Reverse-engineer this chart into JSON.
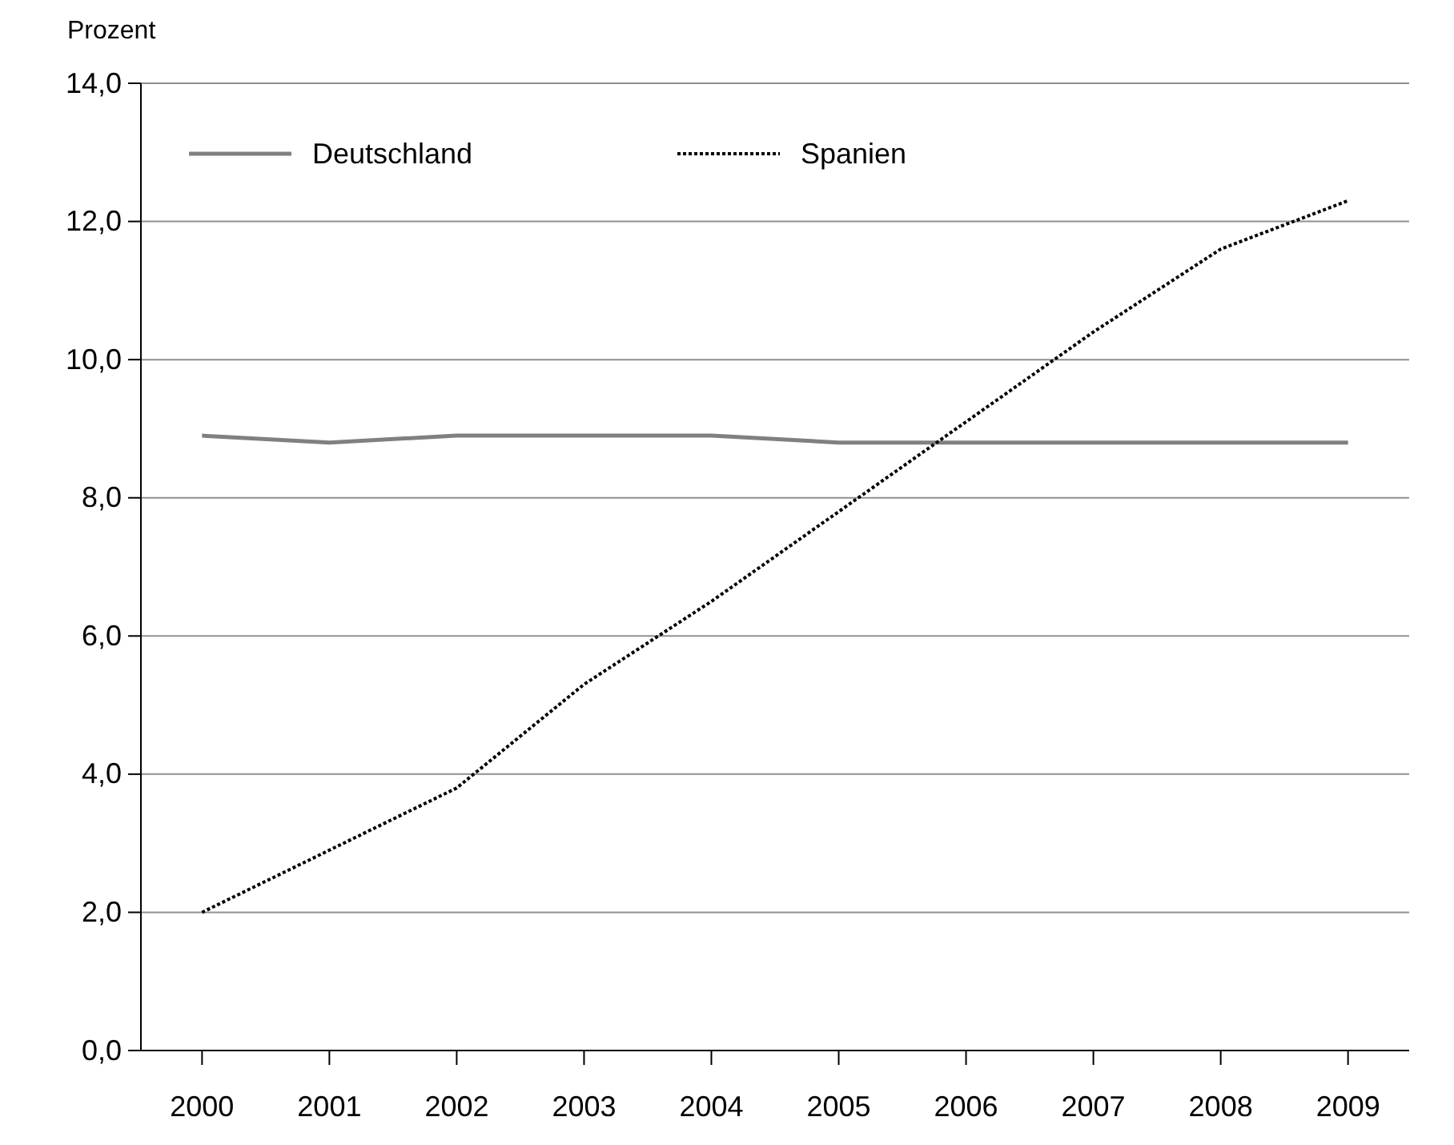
{
  "chart_data": {
    "type": "line",
    "ylabel": "Prozent",
    "categories": [
      "2000",
      "2001",
      "2002",
      "2003",
      "2004",
      "2005",
      "2006",
      "2007",
      "2008",
      "2009"
    ],
    "series": [
      {
        "name": "Deutschland",
        "color": "#808080",
        "line_style": "solid",
        "values": [
          8.9,
          8.8,
          8.9,
          8.9,
          8.9,
          8.8,
          8.8,
          8.8,
          8.8,
          8.8
        ]
      },
      {
        "name": "Spanien",
        "color": "#000000",
        "line_style": "dotted",
        "values": [
          2.0,
          2.9,
          3.8,
          5.3,
          6.5,
          7.8,
          9.1,
          10.4,
          11.6,
          12.3
        ]
      }
    ],
    "ylim": [
      0,
      14
    ],
    "yticks": [
      {
        "value": 0,
        "label": "0,0"
      },
      {
        "value": 2,
        "label": "2,0"
      },
      {
        "value": 4,
        "label": "4,0"
      },
      {
        "value": 6,
        "label": "6,0"
      },
      {
        "value": 8,
        "label": "8,0"
      },
      {
        "value": 10,
        "label": "10,0"
      },
      {
        "value": 12,
        "label": "12,0"
      },
      {
        "value": 14,
        "label": "14,0"
      }
    ],
    "grid": "y",
    "legend": "top left",
    "marker": "none"
  }
}
